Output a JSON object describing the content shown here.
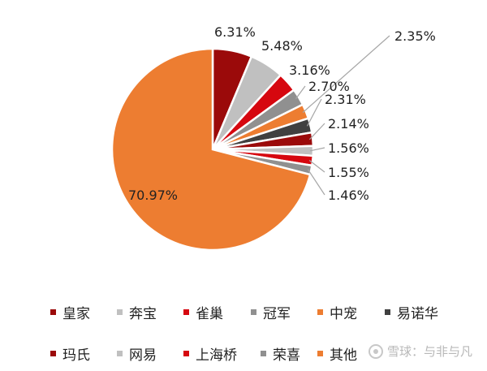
{
  "chart_data": {
    "type": "pie",
    "slices": [
      {
        "name": "皇家",
        "value": 6.31,
        "label": "6.31%",
        "color": "#9b0a0a"
      },
      {
        "name": "奔宝",
        "value": 5.48,
        "label": "5.48%",
        "color": "#c0c0c0"
      },
      {
        "name": "雀巢",
        "value": 3.16,
        "label": "3.16%",
        "color": "#d6070f"
      },
      {
        "name": "冠军",
        "value": 2.7,
        "label": "2.70%",
        "color": "#909090"
      },
      {
        "name": "中宠",
        "value": 2.35,
        "label": "2.35%",
        "color": "#ed7d31"
      },
      {
        "name": "易诺华",
        "value": 2.31,
        "label": "2.31%",
        "color": "#404040"
      },
      {
        "name": "玛氏",
        "value": 2.14,
        "label": "2.14%",
        "color": "#9b0a0a"
      },
      {
        "name": "网易",
        "value": 1.56,
        "label": "1.56%",
        "color": "#c0c0c0"
      },
      {
        "name": "上海桥",
        "value": 1.55,
        "label": "1.55%",
        "color": "#d6070f"
      },
      {
        "name": "荣喜",
        "value": 1.46,
        "label": "1.46%",
        "color": "#909090"
      },
      {
        "name": "其他",
        "value": 70.97,
        "label": "70.97%",
        "color": "#ed7d31"
      }
    ]
  },
  "legend": {
    "row1": [
      {
        "name": "皇家",
        "color": "#9b0a0a"
      },
      {
        "name": "奔宝",
        "color": "#c0c0c0"
      },
      {
        "name": "雀巢",
        "color": "#d6070f"
      },
      {
        "name": "冠军",
        "color": "#909090"
      },
      {
        "name": "中宠",
        "color": "#ed7d31"
      },
      {
        "name": "易诺华",
        "color": "#404040"
      }
    ],
    "row2": [
      {
        "name": "玛氏",
        "color": "#9b0a0a"
      },
      {
        "name": "网易",
        "color": "#c0c0c0"
      },
      {
        "name": "上海桥",
        "color": "#d6070f"
      },
      {
        "name": "荣喜",
        "color": "#909090"
      },
      {
        "name": "其他",
        "color": "#ed7d31"
      }
    ]
  },
  "watermark": {
    "text": "雪球：与非与凡"
  }
}
